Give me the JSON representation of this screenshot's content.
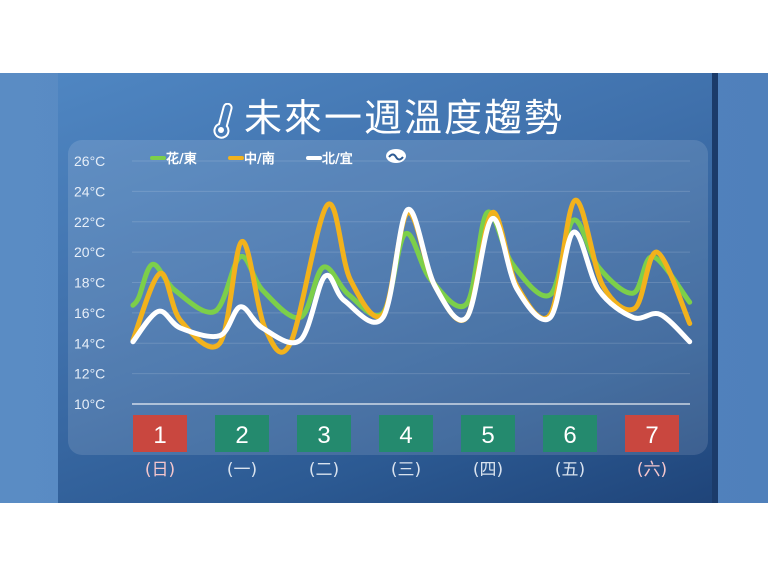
{
  "chart_data": {
    "type": "line",
    "title": "未來一週溫度趨勢",
    "ylim": [
      10,
      26
    ],
    "yticks": [
      "10°C",
      "12°C",
      "14°C",
      "16°C",
      "18°C",
      "20°C",
      "22°C",
      "24°C",
      "26°C"
    ],
    "grid": true,
    "legend_position": "top-left",
    "days": [
      {
        "num": "1",
        "weekday": "(日)",
        "color": "#c9473f"
      },
      {
        "num": "2",
        "weekday": "(一)",
        "color": "#248a6e"
      },
      {
        "num": "3",
        "weekday": "(二)",
        "color": "#248a6e"
      },
      {
        "num": "4",
        "weekday": "(三)",
        "color": "#248a6e"
      },
      {
        "num": "5",
        "weekday": "(四)",
        "color": "#248a6e"
      },
      {
        "num": "6",
        "weekday": "(五)",
        "color": "#248a6e"
      },
      {
        "num": "7",
        "weekday": "(六)",
        "color": "#c9473f"
      }
    ],
    "series": [
      {
        "name": "花/東",
        "color": "#7ccf4a",
        "points": [
          [
            0.17,
            16.5
          ],
          [
            0.24,
            17
          ],
          [
            0.41,
            19.2
          ],
          [
            0.68,
            17.5
          ],
          [
            1.17,
            16.1
          ],
          [
            1.48,
            19.7
          ],
          [
            1.75,
            17.5
          ],
          [
            2.21,
            15.7
          ],
          [
            2.49,
            19.0
          ],
          [
            2.8,
            17.2
          ],
          [
            3.22,
            16.0
          ],
          [
            3.49,
            21.2
          ],
          [
            3.8,
            18.2
          ],
          [
            4.24,
            16.6
          ],
          [
            4.49,
            22.6
          ],
          [
            4.8,
            19.2
          ],
          [
            5.26,
            17.2
          ],
          [
            5.54,
            22.1
          ],
          [
            5.85,
            19.0
          ],
          [
            6.27,
            17.3
          ],
          [
            6.51,
            19.7
          ],
          [
            6.96,
            16.7
          ]
        ]
      },
      {
        "name": "中/南",
        "color": "#f2b21c",
        "points": [
          [
            0.17,
            14.2
          ],
          [
            0.5,
            18.6
          ],
          [
            0.75,
            15.5
          ],
          [
            1.23,
            14.0
          ],
          [
            1.5,
            20.7
          ],
          [
            1.78,
            15.0
          ],
          [
            2.09,
            14.0
          ],
          [
            2.54,
            23.1
          ],
          [
            2.82,
            18.2
          ],
          [
            3.22,
            15.9
          ],
          [
            3.52,
            22.6
          ],
          [
            3.85,
            17.8
          ],
          [
            4.24,
            15.7
          ],
          [
            4.55,
            22.6
          ],
          [
            4.85,
            17.8
          ],
          [
            5.26,
            15.9
          ],
          [
            5.56,
            23.4
          ],
          [
            5.9,
            17.8
          ],
          [
            6.29,
            16.3
          ],
          [
            6.56,
            20.0
          ],
          [
            6.96,
            15.3
          ]
        ]
      },
      {
        "name": "北/宜",
        "color": "#ffffff",
        "points": [
          [
            0.17,
            14.1
          ],
          [
            0.48,
            16.1
          ],
          [
            0.75,
            15.0
          ],
          [
            1.23,
            14.5
          ],
          [
            1.48,
            16.4
          ],
          [
            1.75,
            15.0
          ],
          [
            2.21,
            14.2
          ],
          [
            2.51,
            18.4
          ],
          [
            2.75,
            16.8
          ],
          [
            3.22,
            15.7
          ],
          [
            3.52,
            22.8
          ],
          [
            3.85,
            17.8
          ],
          [
            4.24,
            15.7
          ],
          [
            4.55,
            22.2
          ],
          [
            4.85,
            17.6
          ],
          [
            5.26,
            15.7
          ],
          [
            5.54,
            21.3
          ],
          [
            5.85,
            17.5
          ],
          [
            6.27,
            15.7
          ],
          [
            6.6,
            15.9
          ],
          [
            6.96,
            14.1
          ]
        ]
      }
    ],
    "weekend_label_color": "#f4c6cc",
    "weekday_label_color": "#d8e2ee",
    "icons": [
      "thermometer-icon",
      "weather-bureau-logo"
    ]
  }
}
